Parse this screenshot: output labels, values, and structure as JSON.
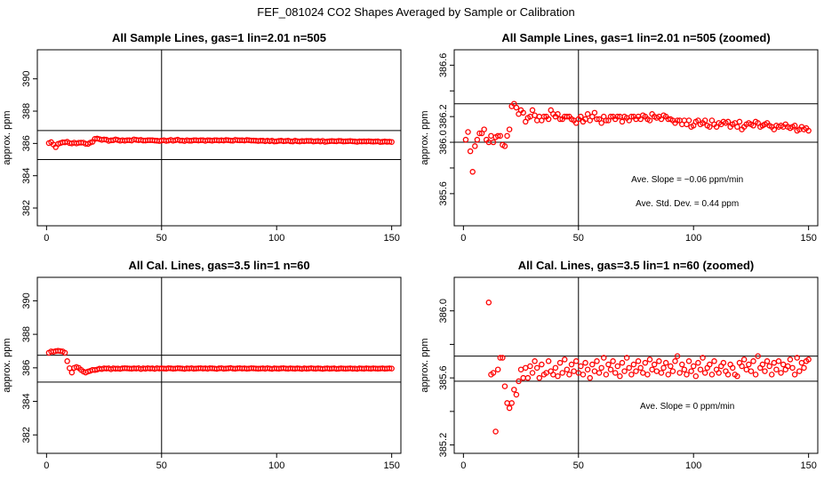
{
  "figure_title": "FEF_081024  CO2 Shapes Averaged by Sample or Calibration",
  "colors": {
    "points": "#ff0000",
    "lines": "#000000",
    "background": "#ffffff"
  },
  "chart_data": [
    {
      "type": "scatter",
      "title": "All Sample Lines, gas=1 lin=2.01 n=505",
      "xlabel": "",
      "ylabel": "approx. ppm",
      "xlim": [
        -4,
        154
      ],
      "ylim": [
        380.9,
        391.8
      ],
      "xticks": [
        0,
        50,
        100,
        150
      ],
      "yticks": [
        382,
        384,
        386,
        388,
        390
      ],
      "hlines": [
        385.0,
        386.8
      ],
      "vline": 50,
      "annotations": [],
      "series": [
        {
          "id": "sample",
          "values": [
            386.02,
            386.08,
            385.93,
            385.77,
            385.97,
            386.02,
            386.07,
            386.07,
            386.1,
            386.02,
            386.0,
            386.05,
            386.0,
            386.04,
            386.05,
            386.05,
            385.98,
            385.97,
            386.05,
            386.1,
            386.28,
            386.3,
            386.27,
            386.22,
            386.25,
            386.23,
            386.16,
            386.19,
            386.2,
            386.25,
            386.21,
            386.17,
            386.2,
            386.17,
            386.2,
            386.2,
            386.18,
            386.25,
            386.22,
            386.2,
            386.22,
            386.18,
            386.18,
            386.2,
            386.2,
            386.2,
            386.18,
            386.17,
            386.15,
            386.18,
            386.2,
            386.16,
            386.18,
            386.22,
            386.17,
            386.2,
            386.23,
            386.18,
            386.18,
            386.15,
            386.2,
            386.17,
            386.17,
            386.2,
            386.2,
            386.18,
            386.2,
            386.2,
            386.16,
            386.2,
            386.19,
            386.17,
            386.2,
            386.2,
            386.18,
            386.2,
            386.18,
            386.21,
            386.2,
            386.18,
            386.17,
            386.22,
            386.2,
            386.19,
            386.2,
            386.18,
            386.21,
            386.2,
            386.18,
            386.18,
            386.17,
            386.15,
            386.17,
            386.17,
            386.14,
            386.17,
            386.14,
            386.17,
            386.12,
            386.13,
            386.16,
            386.17,
            386.14,
            386.15,
            386.17,
            386.13,
            386.12,
            386.17,
            386.14,
            386.12,
            386.15,
            386.14,
            386.16,
            386.15,
            386.16,
            386.12,
            386.14,
            386.15,
            386.12,
            386.16,
            386.1,
            386.12,
            386.14,
            386.15,
            386.14,
            386.13,
            386.16,
            386.15,
            386.12,
            386.13,
            386.14,
            386.15,
            386.13,
            386.12,
            386.1,
            386.13,
            386.12,
            386.13,
            386.12,
            386.14,
            386.12,
            386.11,
            386.12,
            386.13,
            386.09,
            386.1,
            386.12,
            386.1,
            386.11,
            386.09
          ]
        }
      ]
    },
    {
      "type": "scatter",
      "title": "All Sample Lines, gas=1 lin=2.01 n=505 (zoomed)",
      "xlabel": "",
      "ylabel": "approx. ppm",
      "xlim": [
        -4,
        154
      ],
      "ylim": [
        385.35,
        386.72
      ],
      "xticks": [
        0,
        50,
        100,
        150
      ],
      "yticks": [
        385.6,
        385.8,
        386.0,
        386.2,
        386.4,
        386.6
      ],
      "ytick_labels": [
        "385.6",
        "",
        "386.0",
        "386.2",
        "",
        "386.6"
      ],
      "hlines": [
        386.0,
        386.3
      ],
      "vline": 50,
      "annotations": [
        "Ave. Slope =  −0.06  ppm/min",
        "Ave. Std. Dev. =  0.44  ppm"
      ],
      "series": [
        {
          "id": "sample-zoomed",
          "values": [
            386.02,
            386.08,
            385.93,
            385.77,
            385.97,
            386.02,
            386.07,
            386.07,
            386.1,
            386.02,
            386.0,
            386.05,
            386.0,
            386.04,
            386.05,
            386.05,
            385.98,
            385.97,
            386.05,
            386.1,
            386.28,
            386.3,
            386.27,
            386.22,
            386.25,
            386.23,
            386.16,
            386.19,
            386.2,
            386.25,
            386.21,
            386.17,
            386.2,
            386.17,
            386.2,
            386.2,
            386.18,
            386.25,
            386.22,
            386.2,
            386.22,
            386.18,
            386.18,
            386.2,
            386.2,
            386.2,
            386.18,
            386.17,
            386.15,
            386.18,
            386.2,
            386.16,
            386.18,
            386.22,
            386.17,
            386.2,
            386.23,
            386.18,
            386.18,
            386.15,
            386.2,
            386.17,
            386.17,
            386.2,
            386.2,
            386.18,
            386.2,
            386.2,
            386.16,
            386.2,
            386.19,
            386.17,
            386.2,
            386.2,
            386.18,
            386.2,
            386.18,
            386.21,
            386.2,
            386.18,
            386.17,
            386.22,
            386.2,
            386.19,
            386.2,
            386.18,
            386.21,
            386.2,
            386.18,
            386.18,
            386.17,
            386.15,
            386.17,
            386.17,
            386.14,
            386.17,
            386.14,
            386.17,
            386.12,
            386.13,
            386.16,
            386.17,
            386.14,
            386.15,
            386.17,
            386.13,
            386.12,
            386.17,
            386.14,
            386.12,
            386.15,
            386.14,
            386.16,
            386.15,
            386.16,
            386.12,
            386.14,
            386.15,
            386.12,
            386.16,
            386.1,
            386.12,
            386.14,
            386.15,
            386.14,
            386.13,
            386.16,
            386.15,
            386.12,
            386.13,
            386.14,
            386.15,
            386.13,
            386.12,
            386.1,
            386.13,
            386.12,
            386.13,
            386.12,
            386.14,
            386.12,
            386.11,
            386.12,
            386.13,
            386.09,
            386.1,
            386.12,
            386.1,
            386.11,
            386.09
          ]
        }
      ]
    },
    {
      "type": "scatter",
      "title": "All Cal. Lines, gas=3.5 lin=1 n=60",
      "xlabel": "",
      "ylabel": "approx. ppm",
      "xlim": [
        -4,
        154
      ],
      "ylim": [
        380.9,
        391.4
      ],
      "xticks": [
        0,
        50,
        100,
        150
      ],
      "yticks": [
        382,
        384,
        386,
        388,
        390
      ],
      "hlines": [
        385.15,
        386.75
      ],
      "vline": 50,
      "annotations": [],
      "series": [
        {
          "id": "cal",
          "values": [
            386.9,
            386.98,
            386.96,
            387.0,
            387.02,
            387.0,
            386.98,
            386.9,
            386.4,
            385.98,
            385.72,
            386.0,
            386.05,
            386.0,
            385.88,
            385.78,
            385.72,
            385.78,
            385.82,
            385.88,
            385.87,
            385.9,
            385.95,
            385.93,
            385.97,
            385.96,
            385.97,
            385.92,
            385.97,
            385.95,
            385.96,
            385.94,
            385.97,
            385.98,
            385.97,
            385.96,
            385.95,
            385.97,
            385.96,
            385.98,
            385.93,
            385.97,
            385.95,
            385.98,
            385.96,
            385.97,
            385.94,
            385.98,
            385.96,
            385.97,
            385.96,
            385.95,
            385.98,
            385.97,
            385.95,
            385.96,
            385.98,
            385.97,
            385.96,
            385.94,
            385.97,
            385.96,
            385.98,
            385.95,
            385.96,
            385.97,
            385.98,
            385.96,
            385.97,
            385.95,
            385.98,
            385.97,
            385.96,
            385.94,
            385.97,
            385.98,
            385.95,
            385.96,
            385.97,
            385.99,
            385.96,
            385.95,
            385.97,
            385.98,
            385.96,
            385.97,
            385.95,
            385.96,
            385.98,
            385.97,
            385.96,
            385.95,
            385.96,
            385.97,
            385.95,
            385.98,
            385.96,
            385.94,
            385.97,
            385.96,
            385.95,
            385.97,
            385.98,
            385.96,
            385.95,
            385.97,
            385.96,
            385.95,
            385.97,
            385.96,
            385.94,
            385.97,
            385.95,
            385.96,
            385.98,
            385.96,
            385.95,
            385.97,
            385.96,
            385.94,
            385.96,
            385.97,
            385.95,
            385.96,
            385.97,
            385.94,
            385.95,
            385.97,
            385.96,
            385.95,
            385.96,
            385.97,
            385.95,
            385.96,
            385.94,
            385.97,
            385.96,
            385.95,
            385.97,
            385.96,
            385.95,
            385.97,
            385.96,
            385.95,
            385.96,
            385.97,
            385.95,
            385.96,
            385.97,
            385.96
          ]
        }
      ]
    },
    {
      "type": "scatter",
      "title": "All Cal. Lines, gas=3.5 lin=1 n=60 (zoomed)",
      "xlabel": "",
      "ylabel": "approx. ppm",
      "xlim": [
        -4,
        154
      ],
      "ylim": [
        385.15,
        386.2
      ],
      "xticks": [
        0,
        50,
        100,
        150
      ],
      "yticks": [
        385.2,
        385.4,
        385.6,
        385.8,
        386.0
      ],
      "ytick_labels": [
        "385.2",
        "",
        "385.6",
        "",
        "386.0"
      ],
      "hlines": [
        385.58,
        385.73
      ],
      "vline": 50,
      "annotations": [
        "Ave. Slope =  0  ppm/min"
      ],
      "series": [
        {
          "id": "cal-zoomed",
          "first_x": 11,
          "values": [
            386.05,
            385.62,
            385.63,
            385.28,
            385.65,
            385.72,
            385.72,
            385.55,
            385.45,
            385.42,
            385.45,
            385.53,
            385.5,
            385.58,
            385.65,
            385.6,
            385.66,
            385.6,
            385.67,
            385.63,
            385.7,
            385.66,
            385.6,
            385.68,
            385.62,
            385.63,
            385.7,
            385.64,
            385.62,
            385.66,
            385.61,
            385.69,
            385.63,
            385.71,
            385.65,
            385.62,
            385.68,
            385.64,
            385.7,
            385.63,
            385.67,
            385.62,
            385.69,
            385.65,
            385.6,
            385.68,
            385.64,
            385.7,
            385.63,
            385.66,
            385.72,
            385.62,
            385.68,
            385.65,
            385.7,
            385.63,
            385.67,
            385.61,
            385.69,
            385.64,
            385.72,
            385.66,
            385.62,
            385.68,
            385.64,
            385.7,
            385.66,
            385.63,
            385.69,
            385.62,
            385.71,
            385.65,
            385.68,
            385.64,
            385.7,
            385.63,
            385.66,
            385.69,
            385.62,
            385.67,
            385.64,
            385.7,
            385.73,
            385.63,
            385.68,
            385.65,
            385.62,
            385.7,
            385.64,
            385.67,
            385.61,
            385.69,
            385.65,
            385.72,
            385.63,
            385.66,
            385.68,
            385.62,
            385.7,
            385.65,
            385.63,
            385.67,
            385.69,
            385.64,
            385.62,
            385.68,
            385.66,
            385.62,
            385.61,
            385.69,
            385.67,
            385.71,
            385.65,
            385.68,
            385.64,
            385.7,
            385.62,
            385.73,
            385.66,
            385.68,
            385.64,
            385.7,
            385.67,
            385.62,
            385.69,
            385.65,
            385.7,
            385.63,
            385.68,
            385.65,
            385.67,
            385.71,
            385.66,
            385.62,
            385.72,
            385.64,
            385.69,
            385.66,
            385.7,
            385.71
          ]
        }
      ]
    }
  ]
}
